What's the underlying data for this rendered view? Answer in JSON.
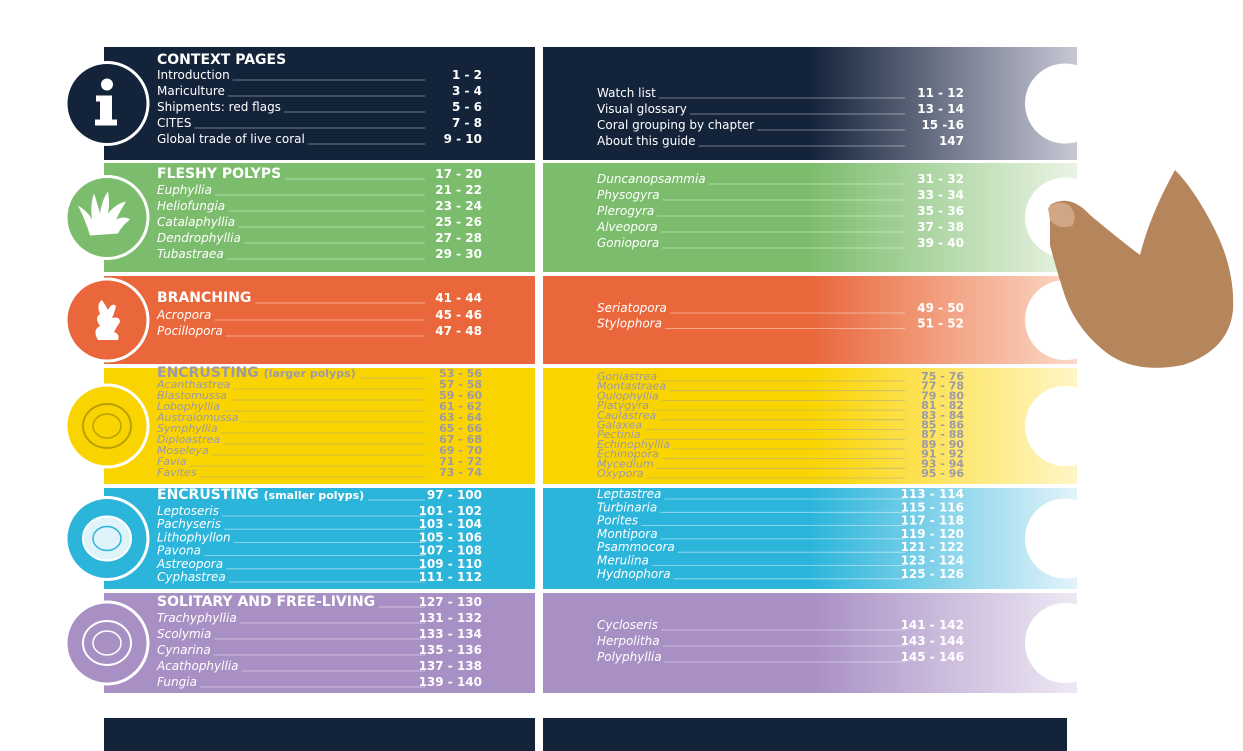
{
  "sections": [
    {
      "title": "CONTEXT PAGES",
      "left": [
        {
          "name": "Introduction",
          "pages": "1 - 2"
        },
        {
          "name": "Mariculture",
          "pages": "3 - 4"
        },
        {
          "name": "Shipments: red flags",
          "pages": "5 - 6"
        },
        {
          "name": "CITES",
          "pages": "7 - 8"
        },
        {
          "name": "Global trade of live coral",
          "pages": "9 - 10"
        }
      ],
      "right": [
        {
          "name": "Watch list",
          "pages": "11 - 12"
        },
        {
          "name": "Visual glossary",
          "pages": "13 - 14"
        },
        {
          "name": "Coral grouping by chapter",
          "pages": "15 -16"
        },
        {
          "name": "About this guide",
          "pages": "147"
        }
      ]
    },
    {
      "title": "FLESHY POLYPS",
      "pages": "17 - 20",
      "left": [
        {
          "name": "Euphyllia",
          "pages": "21 - 22"
        },
        {
          "name": "Heliofungia",
          "pages": "23 - 24"
        },
        {
          "name": "Catalaphyllia",
          "pages": "25 - 26"
        },
        {
          "name": "Dendrophyllia",
          "pages": "27 - 28"
        },
        {
          "name": "Tubastraea",
          "pages": "29 - 30"
        }
      ],
      "right": [
        {
          "name": "Duncanopsammia",
          "pages": "31 - 32"
        },
        {
          "name": "Physogyra",
          "pages": "33 - 34"
        },
        {
          "name": "Plerogyra",
          "pages": "35 - 36"
        },
        {
          "name": "Alveopora",
          "pages": "37 - 38"
        },
        {
          "name": "Goniopora",
          "pages": "39 - 40"
        }
      ]
    },
    {
      "title": "BRANCHING",
      "pages": "41 - 44",
      "left": [
        {
          "name": "Acropora",
          "pages": "45 - 46"
        },
        {
          "name": "Pocillopora",
          "pages": "47 - 48"
        }
      ],
      "right": [
        {
          "name": "Seriatopora",
          "pages": "49 - 50"
        },
        {
          "name": "Stylophora",
          "pages": "51 - 52"
        }
      ]
    },
    {
      "title": "ENCRUSTING",
      "subtitle": "(larger polyps)",
      "pages": "53 - 56",
      "left": [
        {
          "name": "Acanthastrea",
          "pages": "57 - 58"
        },
        {
          "name": "Blastomussa",
          "pages": "59 - 60"
        },
        {
          "name": "Lobophyllia",
          "pages": "61 - 62"
        },
        {
          "name": "Australomussa",
          "pages": "63 - 64"
        },
        {
          "name": "Symphyllia",
          "pages": "65 - 66"
        },
        {
          "name": "Diploastrea",
          "pages": "67 - 68"
        },
        {
          "name": "Moseleya",
          "pages": "69 - 70"
        },
        {
          "name": "Favia",
          "pages": "71 - 72"
        },
        {
          "name": "Favites",
          "pages": "73 - 74"
        }
      ],
      "right": [
        {
          "name": "Goniastrea",
          "pages": "75 - 76"
        },
        {
          "name": "Montastraea",
          "pages": "77 - 78"
        },
        {
          "name": "Oulophyllia",
          "pages": "79 - 80"
        },
        {
          "name": "Platygyra",
          "pages": "81 - 82"
        },
        {
          "name": "Caulastrea",
          "pages": "83 - 84"
        },
        {
          "name": "Galaxea",
          "pages": "85 - 86"
        },
        {
          "name": "Pectinia",
          "pages": "87 - 88"
        },
        {
          "name": "Echinophyllia",
          "pages": "89 - 90"
        },
        {
          "name": "Echinopora",
          "pages": "91 - 92"
        },
        {
          "name": "Mycedium",
          "pages": "93 - 94"
        },
        {
          "name": "Oxypora",
          "pages": "95 - 96"
        }
      ]
    },
    {
      "title": "ENCRUSTING",
      "subtitle": "(smaller polyps)",
      "pages": "97 - 100",
      "left": [
        {
          "name": "Leptoseris",
          "pages": "101 - 102"
        },
        {
          "name": "Pachyseris",
          "pages": "103 - 104"
        },
        {
          "name": "Lithophyllon",
          "pages": "105 - 106"
        },
        {
          "name": "Pavona",
          "pages": "107 - 108"
        },
        {
          "name": "Astreopora",
          "pages": "109 - 110"
        },
        {
          "name": "Cyphastrea",
          "pages": "111 - 112"
        }
      ],
      "right": [
        {
          "name": "Leptastrea",
          "pages": "113 - 114"
        },
        {
          "name": "Turbinaria",
          "pages": "115 - 116"
        },
        {
          "name": "Porites",
          "pages": "117 - 118"
        },
        {
          "name": "Montipora",
          "pages": "119 - 120"
        },
        {
          "name": "Psammocora",
          "pages": "121 - 122"
        },
        {
          "name": "Merulina",
          "pages": "123 - 124"
        },
        {
          "name": "Hydnophora",
          "pages": "125 - 126"
        }
      ]
    },
    {
      "title": "SOLITARY AND FREE-LIVING",
      "pages": "127 - 130",
      "left": [
        {
          "name": "Trachyphyllia",
          "pages": "131 - 132"
        },
        {
          "name": "Scolymia",
          "pages": "133 - 134"
        },
        {
          "name": "Cynarina",
          "pages": "135 - 136"
        },
        {
          "name": "Acathophyllia",
          "pages": "137 - 138"
        },
        {
          "name": "Fungia",
          "pages": "139 - 140"
        }
      ],
      "right": [
        {
          "name": "Cycloseris",
          "pages": "141 - 142"
        },
        {
          "name": "Herpolitha",
          "pages": "143 - 144"
        },
        {
          "name": "Polyphyllia",
          "pages": "145 - 146"
        }
      ]
    }
  ]
}
